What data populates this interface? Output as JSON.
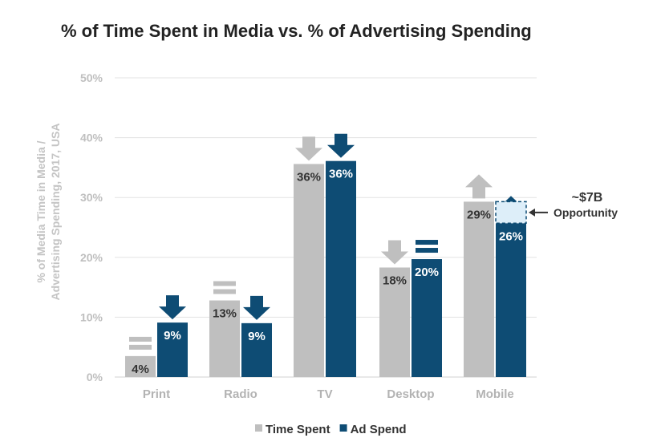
{
  "chart_data": {
    "type": "bar",
    "title": "% of Time Spent in Media vs. % of Advertising Spending",
    "ylabel_lines": [
      "% of Media Time in Media /",
      "Advertising Spending, 2017, USA"
    ],
    "ylim": [
      0,
      50
    ],
    "yticks": [
      "0%",
      "10%",
      "20%",
      "30%",
      "40%",
      "50%"
    ],
    "categories": [
      "Print",
      "Radio",
      "TV",
      "Desktop",
      "Mobile"
    ],
    "series": [
      {
        "name": "Time Spent",
        "color": "#bfbfbf",
        "values": [
          3.5,
          12.8,
          35.6,
          18.3,
          29.3
        ],
        "labels": [
          "4%",
          "13%",
          "36%",
          "18%",
          "29%"
        ],
        "trend_icons": [
          "equal",
          "equal",
          "down",
          "down",
          "up"
        ]
      },
      {
        "name": "Ad Spend",
        "color": "#0e4c74",
        "values": [
          9.1,
          9.0,
          36.1,
          19.7,
          25.7
        ],
        "labels": [
          "9%",
          "9%",
          "36%",
          "20%",
          "26%"
        ],
        "trend_icons": [
          "down",
          "down",
          "down",
          "equal",
          "up"
        ]
      }
    ],
    "annotation": {
      "category": "Mobile",
      "gap_from": 25.7,
      "gap_to": 29.3,
      "value_text": "~$7B",
      "label_text": "Opportunity",
      "color": "#ddeef9"
    },
    "grid": true,
    "legend": "bottom-center"
  }
}
